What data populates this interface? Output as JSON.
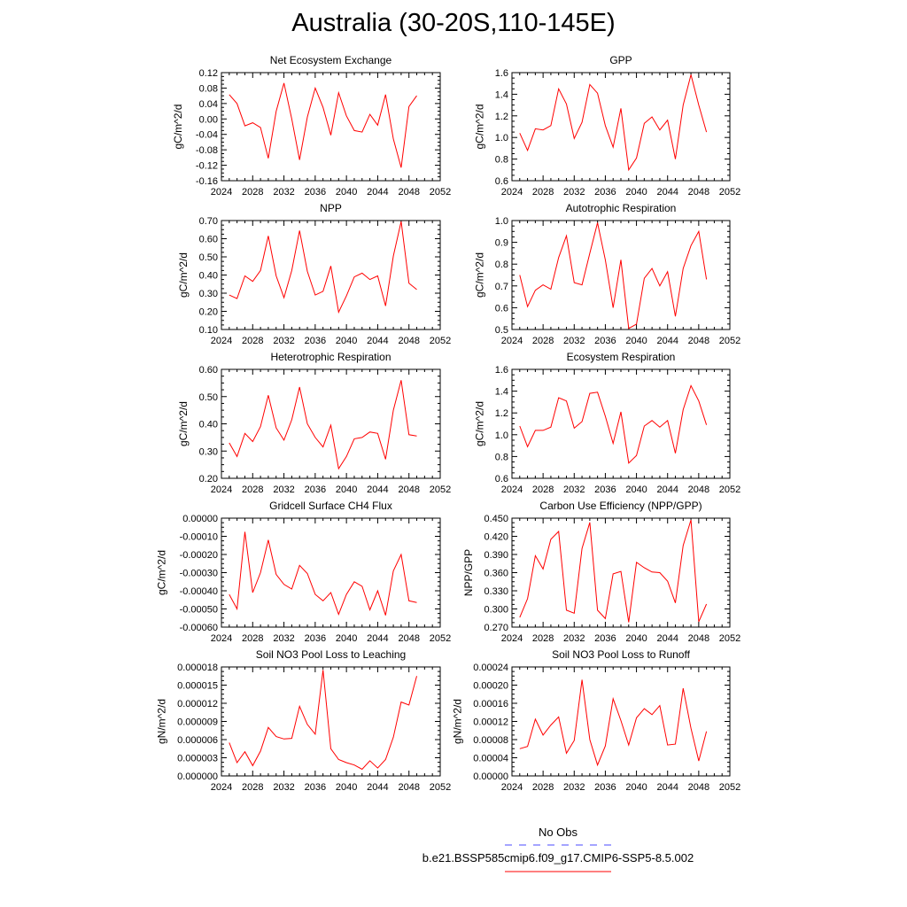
{
  "page_title": "Australia (30-20S,110-145E)",
  "legend": {
    "obs_label": "No Obs",
    "obs_color": "#4a4aff",
    "model_label": "b.e21.BSSP585cmip6.f09_g17.CMIP6-SSP5-8.5.002",
    "model_color": "#ff0000"
  },
  "chart_data": [
    {
      "type": "line",
      "title": "Net Ecosystem Exchange",
      "ylabel": "gC/m^2/d",
      "xlim": [
        2024,
        2052
      ],
      "xticks": [
        "2024",
        "2028",
        "2032",
        "2036",
        "2040",
        "2044",
        "2048",
        "2052"
      ],
      "ylim": [
        -0.16,
        0.12
      ],
      "yticks": [
        "-0.16",
        "-0.12",
        "-0.08",
        "-0.04",
        "0.00",
        "0.04",
        "0.08",
        "0.12"
      ],
      "x": [
        2025,
        2026,
        2027,
        2028,
        2029,
        2030,
        2031,
        2032,
        2033,
        2034,
        2035,
        2036,
        2037,
        2038,
        2039,
        2040,
        2041,
        2042,
        2043,
        2044,
        2045,
        2046,
        2047,
        2048,
        2049
      ],
      "series": [
        {
          "values": [
            0.063,
            0.04,
            -0.018,
            -0.01,
            -0.022,
            -0.102,
            0.02,
            0.093,
            0.0,
            -0.106,
            0.005,
            0.08,
            0.03,
            -0.042,
            0.068,
            0.008,
            -0.03,
            -0.034,
            0.012,
            -0.016,
            0.063,
            -0.052,
            -0.126,
            0.032,
            0.06
          ]
        }
      ]
    },
    {
      "type": "line",
      "title": "GPP",
      "ylabel": "gC/m^2/d",
      "xlim": [
        2024,
        2052
      ],
      "xticks": [
        "2024",
        "2028",
        "2032",
        "2036",
        "2040",
        "2044",
        "2048",
        "2052"
      ],
      "ylim": [
        0.6,
        1.6
      ],
      "yticks": [
        "0.6",
        "0.8",
        "1.0",
        "1.2",
        "1.4",
        "1.6"
      ],
      "x": [
        2025,
        2026,
        2027,
        2028,
        2029,
        2030,
        2031,
        2032,
        2033,
        2034,
        2035,
        2036,
        2037,
        2038,
        2039,
        2040,
        2041,
        2042,
        2043,
        2044,
        2045,
        2046,
        2047,
        2048,
        2049
      ],
      "series": [
        {
          "values": [
            1.04,
            0.88,
            1.08,
            1.07,
            1.11,
            1.45,
            1.31,
            0.99,
            1.14,
            1.49,
            1.41,
            1.11,
            0.91,
            1.27,
            0.7,
            0.81,
            1.13,
            1.19,
            1.07,
            1.16,
            0.8,
            1.3,
            1.58,
            1.3,
            1.05
          ]
        }
      ]
    },
    {
      "type": "line",
      "title": "NPP",
      "ylabel": "gC/m^2/d",
      "xlim": [
        2024,
        2052
      ],
      "xticks": [
        "2024",
        "2028",
        "2032",
        "2036",
        "2040",
        "2044",
        "2048",
        "2052"
      ],
      "ylim": [
        0.1,
        0.7
      ],
      "yticks": [
        "0.10",
        "0.20",
        "0.30",
        "0.40",
        "0.50",
        "0.60",
        "0.70"
      ],
      "x": [
        2025,
        2026,
        2027,
        2028,
        2029,
        2030,
        2031,
        2032,
        2033,
        2034,
        2035,
        2036,
        2037,
        2038,
        2039,
        2040,
        2041,
        2042,
        2043,
        2044,
        2045,
        2046,
        2047,
        2048,
        2049
      ],
      "series": [
        {
          "values": [
            0.29,
            0.27,
            0.395,
            0.365,
            0.425,
            0.615,
            0.395,
            0.275,
            0.425,
            0.645,
            0.42,
            0.29,
            0.31,
            0.45,
            0.195,
            0.285,
            0.39,
            0.41,
            0.375,
            0.395,
            0.23,
            0.505,
            0.695,
            0.355,
            0.32
          ]
        }
      ]
    },
    {
      "type": "line",
      "title": "Autotrophic Respiration",
      "ylabel": "gC/m^2/d",
      "xlim": [
        2024,
        2052
      ],
      "xticks": [
        "2024",
        "2028",
        "2032",
        "2036",
        "2040",
        "2044",
        "2048",
        "2052"
      ],
      "ylim": [
        0.5,
        1.0
      ],
      "yticks": [
        "0.5",
        "0.6",
        "0.7",
        "0.8",
        "0.9",
        "1.0"
      ],
      "x": [
        2025,
        2026,
        2027,
        2028,
        2029,
        2030,
        2031,
        2032,
        2033,
        2034,
        2035,
        2036,
        2037,
        2038,
        2039,
        2040,
        2041,
        2042,
        2043,
        2044,
        2045,
        2046,
        2047,
        2048,
        2049
      ],
      "series": [
        {
          "values": [
            0.75,
            0.605,
            0.68,
            0.705,
            0.685,
            0.83,
            0.93,
            0.715,
            0.705,
            0.85,
            0.99,
            0.82,
            0.6,
            0.82,
            0.505,
            0.525,
            0.735,
            0.78,
            0.7,
            0.765,
            0.56,
            0.78,
            0.885,
            0.95,
            0.73
          ]
        }
      ]
    },
    {
      "type": "line",
      "title": "Heterotrophic Respiration",
      "ylabel": "gC/m^2/d",
      "xlim": [
        2024,
        2052
      ],
      "xticks": [
        "2024",
        "2028",
        "2032",
        "2036",
        "2040",
        "2044",
        "2048",
        "2052"
      ],
      "ylim": [
        0.2,
        0.6
      ],
      "yticks": [
        "0.20",
        "0.30",
        "0.40",
        "0.50",
        "0.60"
      ],
      "x": [
        2025,
        2026,
        2027,
        2028,
        2029,
        2030,
        2031,
        2032,
        2033,
        2034,
        2035,
        2036,
        2037,
        2038,
        2039,
        2040,
        2041,
        2042,
        2043,
        2044,
        2045,
        2046,
        2047,
        2048,
        2049
      ],
      "series": [
        {
          "values": [
            0.33,
            0.28,
            0.365,
            0.335,
            0.39,
            0.505,
            0.385,
            0.34,
            0.415,
            0.535,
            0.4,
            0.35,
            0.315,
            0.395,
            0.235,
            0.28,
            0.345,
            0.35,
            0.37,
            0.365,
            0.27,
            0.45,
            0.56,
            0.36,
            0.355
          ]
        }
      ]
    },
    {
      "type": "line",
      "title": "Ecosystem Respiration",
      "ylabel": "gC/m^2/d",
      "xlim": [
        2024,
        2052
      ],
      "xticks": [
        "2024",
        "2028",
        "2032",
        "2036",
        "2040",
        "2044",
        "2048",
        "2052"
      ],
      "ylim": [
        0.6,
        1.6
      ],
      "yticks": [
        "0.6",
        "0.8",
        "1.0",
        "1.2",
        "1.4",
        "1.6"
      ],
      "x": [
        2025,
        2026,
        2027,
        2028,
        2029,
        2030,
        2031,
        2032,
        2033,
        2034,
        2035,
        2036,
        2037,
        2038,
        2039,
        2040,
        2041,
        2042,
        2043,
        2044,
        2045,
        2046,
        2047,
        2048,
        2049
      ],
      "series": [
        {
          "values": [
            1.08,
            0.89,
            1.04,
            1.04,
            1.07,
            1.34,
            1.31,
            1.06,
            1.12,
            1.38,
            1.39,
            1.17,
            0.92,
            1.21,
            0.74,
            0.81,
            1.08,
            1.13,
            1.07,
            1.13,
            0.83,
            1.23,
            1.45,
            1.31,
            1.09
          ]
        }
      ]
    },
    {
      "type": "line",
      "title": "Gridcell Surface CH4 Flux",
      "ylabel": "gC/m^2/d",
      "xlim": [
        2024,
        2052
      ],
      "xticks": [
        "2024",
        "2028",
        "2032",
        "2036",
        "2040",
        "2044",
        "2048",
        "2052"
      ],
      "ylim": [
        -0.0006,
        0.0
      ],
      "yticks": [
        "-0.00060",
        "-0.00050",
        "-0.00040",
        "-0.00030",
        "-0.00020",
        "-0.00010",
        "0.00000"
      ],
      "x": [
        2025,
        2026,
        2027,
        2028,
        2029,
        2030,
        2031,
        2032,
        2033,
        2034,
        2035,
        2036,
        2037,
        2038,
        2039,
        2040,
        2041,
        2042,
        2043,
        2044,
        2045,
        2046,
        2047,
        2048,
        2049
      ],
      "series": [
        {
          "values": [
            -0.00042,
            -0.0005,
            -7.5e-05,
            -0.00041,
            -0.0003,
            -0.00012,
            -0.00031,
            -0.000365,
            -0.00039,
            -0.00026,
            -0.000305,
            -0.00042,
            -0.000455,
            -0.00041,
            -0.00053,
            -0.00042,
            -0.00035,
            -0.000375,
            -0.000505,
            -0.0004,
            -0.000535,
            -0.00029,
            -0.0002,
            -0.000455,
            -0.000465
          ]
        }
      ]
    },
    {
      "type": "line",
      "title": "Carbon Use Efficiency (NPP/GPP)",
      "ylabel": "NPP/GPP",
      "xlim": [
        2024,
        2052
      ],
      "xticks": [
        "2024",
        "2028",
        "2032",
        "2036",
        "2040",
        "2044",
        "2048",
        "2052"
      ],
      "ylim": [
        0.27,
        0.45
      ],
      "yticks": [
        "0.270",
        "0.300",
        "0.330",
        "0.360",
        "0.390",
        "0.420",
        "0.450"
      ],
      "x": [
        2025,
        2026,
        2027,
        2028,
        2029,
        2030,
        2031,
        2032,
        2033,
        2034,
        2035,
        2036,
        2037,
        2038,
        2039,
        2040,
        2041,
        2042,
        2043,
        2044,
        2045,
        2046,
        2047,
        2048,
        2049
      ],
      "series": [
        {
          "values": [
            0.286,
            0.317,
            0.388,
            0.366,
            0.415,
            0.428,
            0.298,
            0.293,
            0.4,
            0.443,
            0.298,
            0.284,
            0.358,
            0.362,
            0.278,
            0.377,
            0.368,
            0.361,
            0.36,
            0.346,
            0.31,
            0.405,
            0.447,
            0.279,
            0.308
          ]
        }
      ]
    },
    {
      "type": "line",
      "title": "Soil NO3 Pool Loss to Leaching",
      "ylabel": "gN/m^2/d",
      "xlim": [
        2024,
        2052
      ],
      "xticks": [
        "2024",
        "2028",
        "2032",
        "2036",
        "2040",
        "2044",
        "2048",
        "2052"
      ],
      "ylim": [
        0.0,
        1.8e-05
      ],
      "yticks": [
        "0.000000",
        "0.000003",
        "0.000006",
        "0.000009",
        "0.000012",
        "0.000015",
        "0.000018"
      ],
      "x": [
        2025,
        2026,
        2027,
        2028,
        2029,
        2030,
        2031,
        2032,
        2033,
        2034,
        2035,
        2036,
        2037,
        2038,
        2039,
        2040,
        2041,
        2042,
        2043,
        2044,
        2045,
        2046,
        2047,
        2048,
        2049
      ],
      "series": [
        {
          "values": [
            5.5e-06,
            2.2e-06,
            4e-06,
            1.7e-06,
            4.1e-06,
            8e-06,
            6.5e-06,
            6.1e-06,
            6.2e-06,
            1.15e-05,
            8.5e-06,
            6.9e-06,
            1.75e-05,
            4.5e-06,
            2.7e-06,
            2.2e-06,
            1.8e-06,
            1.1e-06,
            2.5e-06,
            1.3e-06,
            2.7e-06,
            6.4e-06,
            1.22e-05,
            1.17e-05,
            1.65e-05
          ]
        }
      ]
    },
    {
      "type": "line",
      "title": "Soil NO3 Pool Loss to Runoff",
      "ylabel": "gN/m^2/d",
      "xlim": [
        2024,
        2052
      ],
      "xticks": [
        "2024",
        "2028",
        "2032",
        "2036",
        "2040",
        "2044",
        "2048",
        "2052"
      ],
      "ylim": [
        0.0,
        0.00024
      ],
      "yticks": [
        "0.00000",
        "0.00004",
        "0.00008",
        "0.00012",
        "0.00016",
        "0.00020",
        "0.00024"
      ],
      "x": [
        2025,
        2026,
        2027,
        2028,
        2029,
        2030,
        2031,
        2032,
        2033,
        2034,
        2035,
        2036,
        2037,
        2038,
        2039,
        2040,
        2041,
        2042,
        2043,
        2044,
        2045,
        2046,
        2047,
        2048,
        2049
      ],
      "series": [
        {
          "values": [
            6e-05,
            6.5e-05,
            0.000125,
            9e-05,
            0.000112,
            0.00013,
            5e-05,
            7.8e-05,
            0.000212,
            8e-05,
            2.4e-05,
            6.6e-05,
            0.00017,
            0.000122,
            6.8e-05,
            0.000128,
            0.000148,
            0.000135,
            0.000155,
            6.8e-05,
            7e-05,
            0.000193,
            0.000105,
            3.3e-05,
            9.8e-05
          ]
        }
      ]
    }
  ]
}
